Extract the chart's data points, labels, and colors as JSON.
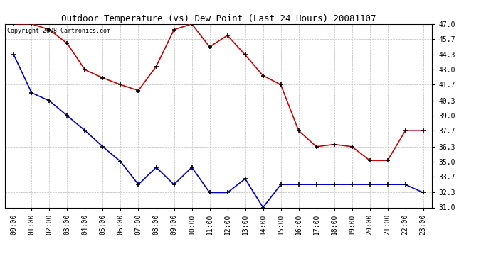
{
  "title": "Outdoor Temperature (vs) Dew Point (Last 24 Hours) 20081107",
  "copyright_text": "Copyright 2008 Cartronics.com",
  "x_labels": [
    "00:00",
    "01:00",
    "02:00",
    "03:00",
    "04:00",
    "05:00",
    "06:00",
    "07:00",
    "08:00",
    "09:00",
    "10:00",
    "11:00",
    "12:00",
    "13:00",
    "14:00",
    "15:00",
    "16:00",
    "17:00",
    "18:00",
    "19:00",
    "20:00",
    "21:00",
    "22:00",
    "23:00"
  ],
  "temp_data": [
    47.0,
    47.0,
    46.5,
    45.3,
    43.0,
    42.3,
    41.7,
    41.2,
    43.3,
    46.5,
    47.0,
    45.0,
    46.0,
    44.3,
    42.5,
    41.7,
    37.7,
    36.3,
    36.5,
    36.3,
    35.1,
    35.1,
    37.7,
    37.7
  ],
  "dew_data": [
    44.3,
    41.0,
    40.3,
    39.0,
    37.7,
    36.3,
    35.0,
    33.0,
    34.5,
    33.0,
    34.5,
    32.3,
    32.3,
    33.5,
    31.0,
    33.0,
    33.0,
    33.0,
    33.0,
    33.0,
    33.0,
    33.0,
    33.0,
    32.3
  ],
  "temp_color": "#cc0000",
  "dew_color": "#0000cc",
  "background_color": "#ffffff",
  "plot_bg_color": "#ffffff",
  "grid_color": "#bbbbbb",
  "ylim": [
    31.0,
    47.0
  ],
  "yticks": [
    31.0,
    32.3,
    33.7,
    35.0,
    36.3,
    37.7,
    39.0,
    40.3,
    41.7,
    43.0,
    44.3,
    45.7,
    47.0
  ],
  "title_fontsize": 9,
  "tick_fontsize": 7,
  "copyright_fontsize": 6
}
